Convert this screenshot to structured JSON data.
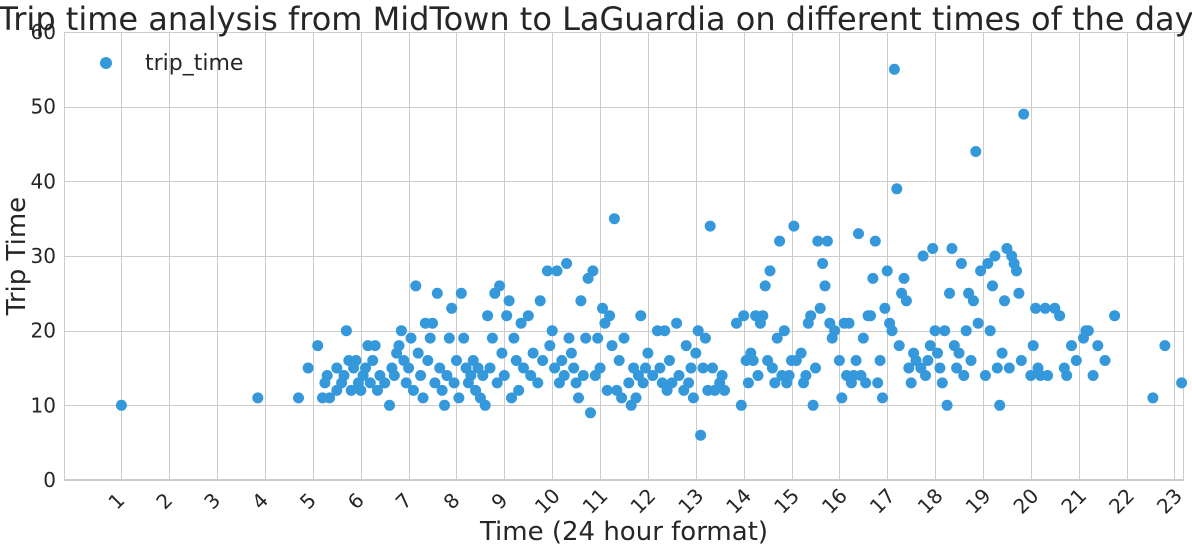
{
  "chart_data": {
    "type": "scatter",
    "title": "Trip time analysis from MidTown to LaGuardia on different times of the day",
    "xlabel": "Time (24 hour format)",
    "ylabel": "Trip Time",
    "xlim": [
      -0.2,
      23.2
    ],
    "ylim": [
      0,
      60
    ],
    "xticks": [
      1,
      2,
      3,
      4,
      5,
      6,
      7,
      8,
      9,
      10,
      11,
      12,
      13,
      14,
      15,
      16,
      17,
      18,
      19,
      20,
      21,
      22,
      23
    ],
    "yticks": [
      0,
      10,
      20,
      30,
      40,
      50,
      60
    ],
    "grid": true,
    "legend_position": "top-left",
    "series": [
      {
        "name": "trip_time",
        "color": "#3498db",
        "points": [
          [
            1.0,
            10
          ],
          [
            3.85,
            11
          ],
          [
            4.7,
            11
          ],
          [
            4.9,
            15
          ],
          [
            5.1,
            18
          ],
          [
            5.2,
            11
          ],
          [
            5.25,
            13
          ],
          [
            5.3,
            14
          ],
          [
            5.35,
            11
          ],
          [
            5.5,
            12
          ],
          [
            5.5,
            15
          ],
          [
            5.6,
            13
          ],
          [
            5.65,
            14
          ],
          [
            5.7,
            20
          ],
          [
            5.75,
            16
          ],
          [
            5.8,
            12
          ],
          [
            5.85,
            15
          ],
          [
            5.9,
            16
          ],
          [
            5.95,
            13
          ],
          [
            6.0,
            12
          ],
          [
            6.05,
            14
          ],
          [
            6.1,
            15
          ],
          [
            6.15,
            18
          ],
          [
            6.2,
            13
          ],
          [
            6.25,
            16
          ],
          [
            6.3,
            18
          ],
          [
            6.35,
            12
          ],
          [
            6.4,
            14
          ],
          [
            6.5,
            13
          ],
          [
            6.6,
            10
          ],
          [
            6.65,
            15
          ],
          [
            6.7,
            14
          ],
          [
            6.75,
            17
          ],
          [
            6.8,
            18
          ],
          [
            6.85,
            20
          ],
          [
            6.9,
            16
          ],
          [
            6.95,
            13
          ],
          [
            7.0,
            15
          ],
          [
            7.05,
            19
          ],
          [
            7.1,
            12
          ],
          [
            7.15,
            26
          ],
          [
            7.2,
            17
          ],
          [
            7.25,
            14
          ],
          [
            7.3,
            11
          ],
          [
            7.35,
            21
          ],
          [
            7.4,
            16
          ],
          [
            7.45,
            19
          ],
          [
            7.5,
            21
          ],
          [
            7.55,
            13
          ],
          [
            7.6,
            25
          ],
          [
            7.65,
            15
          ],
          [
            7.7,
            12
          ],
          [
            7.75,
            10
          ],
          [
            7.8,
            14
          ],
          [
            7.85,
            19
          ],
          [
            7.9,
            23
          ],
          [
            7.95,
            13
          ],
          [
            8.0,
            16
          ],
          [
            8.05,
            11
          ],
          [
            8.1,
            25
          ],
          [
            8.15,
            19
          ],
          [
            8.2,
            15
          ],
          [
            8.25,
            13
          ],
          [
            8.3,
            14
          ],
          [
            8.35,
            16
          ],
          [
            8.4,
            12
          ],
          [
            8.45,
            15
          ],
          [
            8.5,
            11
          ],
          [
            8.55,
            14
          ],
          [
            8.6,
            10
          ],
          [
            8.65,
            22
          ],
          [
            8.7,
            15
          ],
          [
            8.75,
            19
          ],
          [
            8.8,
            25
          ],
          [
            8.85,
            13
          ],
          [
            8.9,
            26
          ],
          [
            8.95,
            17
          ],
          [
            9.0,
            14
          ],
          [
            9.05,
            22
          ],
          [
            9.1,
            24
          ],
          [
            9.15,
            11
          ],
          [
            9.2,
            19
          ],
          [
            9.25,
            16
          ],
          [
            9.3,
            12
          ],
          [
            9.35,
            21
          ],
          [
            9.4,
            15
          ],
          [
            9.5,
            22
          ],
          [
            9.55,
            14
          ],
          [
            9.6,
            17
          ],
          [
            9.7,
            13
          ],
          [
            9.75,
            24
          ],
          [
            9.8,
            16
          ],
          [
            9.9,
            28
          ],
          [
            9.95,
            18
          ],
          [
            10.0,
            20
          ],
          [
            10.05,
            15
          ],
          [
            10.1,
            28
          ],
          [
            10.15,
            13
          ],
          [
            10.2,
            16
          ],
          [
            10.25,
            14
          ],
          [
            10.3,
            29
          ],
          [
            10.35,
            19
          ],
          [
            10.4,
            17
          ],
          [
            10.45,
            15
          ],
          [
            10.5,
            13
          ],
          [
            10.55,
            11
          ],
          [
            10.6,
            24
          ],
          [
            10.65,
            14
          ],
          [
            10.7,
            19
          ],
          [
            10.75,
            27
          ],
          [
            10.8,
            9
          ],
          [
            10.85,
            28
          ],
          [
            10.9,
            14
          ],
          [
            10.95,
            19
          ],
          [
            11.0,
            15
          ],
          [
            11.05,
            23
          ],
          [
            11.1,
            21
          ],
          [
            11.15,
            12
          ],
          [
            11.2,
            22
          ],
          [
            11.25,
            18
          ],
          [
            11.3,
            35
          ],
          [
            11.35,
            12
          ],
          [
            11.4,
            16
          ],
          [
            11.45,
            11
          ],
          [
            11.5,
            19
          ],
          [
            11.6,
            13
          ],
          [
            11.65,
            10
          ],
          [
            11.7,
            15
          ],
          [
            11.75,
            11
          ],
          [
            11.8,
            14
          ],
          [
            11.85,
            22
          ],
          [
            11.9,
            13
          ],
          [
            11.95,
            15
          ],
          [
            12.0,
            17
          ],
          [
            12.1,
            14
          ],
          [
            12.2,
            20
          ],
          [
            12.25,
            15
          ],
          [
            12.3,
            13
          ],
          [
            12.35,
            20
          ],
          [
            12.4,
            12
          ],
          [
            12.45,
            16
          ],
          [
            12.5,
            13
          ],
          [
            12.6,
            21
          ],
          [
            12.65,
            14
          ],
          [
            12.75,
            12
          ],
          [
            12.8,
            18
          ],
          [
            12.85,
            13
          ],
          [
            12.9,
            15
          ],
          [
            12.95,
            11
          ],
          [
            13.0,
            17
          ],
          [
            13.05,
            20
          ],
          [
            13.1,
            6
          ],
          [
            13.15,
            15
          ],
          [
            13.2,
            19
          ],
          [
            13.25,
            12
          ],
          [
            13.3,
            34
          ],
          [
            13.35,
            15
          ],
          [
            13.4,
            12
          ],
          [
            13.5,
            13
          ],
          [
            13.55,
            14
          ],
          [
            13.6,
            12
          ],
          [
            13.85,
            21
          ],
          [
            13.95,
            10
          ],
          [
            14.0,
            22
          ],
          [
            14.05,
            16
          ],
          [
            14.1,
            13
          ],
          [
            14.15,
            17
          ],
          [
            14.2,
            16
          ],
          [
            14.25,
            22
          ],
          [
            14.3,
            14
          ],
          [
            14.35,
            21
          ],
          [
            14.4,
            22
          ],
          [
            14.45,
            26
          ],
          [
            14.5,
            16
          ],
          [
            14.55,
            28
          ],
          [
            14.6,
            15
          ],
          [
            14.65,
            13
          ],
          [
            14.7,
            19
          ],
          [
            14.75,
            32
          ],
          [
            14.8,
            14
          ],
          [
            14.85,
            20
          ],
          [
            14.9,
            13
          ],
          [
            14.95,
            14
          ],
          [
            15.0,
            16
          ],
          [
            15.05,
            34
          ],
          [
            15.1,
            16
          ],
          [
            15.2,
            17
          ],
          [
            15.25,
            13
          ],
          [
            15.3,
            14
          ],
          [
            15.35,
            21
          ],
          [
            15.4,
            22
          ],
          [
            15.45,
            10
          ],
          [
            15.5,
            15
          ],
          [
            15.55,
            32
          ],
          [
            15.6,
            23
          ],
          [
            15.65,
            29
          ],
          [
            15.7,
            26
          ],
          [
            15.75,
            32
          ],
          [
            15.8,
            21
          ],
          [
            15.85,
            19
          ],
          [
            15.9,
            20
          ],
          [
            16.0,
            16
          ],
          [
            16.05,
            11
          ],
          [
            16.1,
            21
          ],
          [
            16.15,
            14
          ],
          [
            16.2,
            21
          ],
          [
            16.25,
            13
          ],
          [
            16.3,
            14
          ],
          [
            16.35,
            16
          ],
          [
            16.4,
            33
          ],
          [
            16.45,
            14
          ],
          [
            16.5,
            19
          ],
          [
            16.55,
            13
          ],
          [
            16.6,
            22
          ],
          [
            16.65,
            22
          ],
          [
            16.7,
            27
          ],
          [
            16.75,
            32
          ],
          [
            16.8,
            13
          ],
          [
            16.85,
            16
          ],
          [
            16.9,
            11
          ],
          [
            16.95,
            23
          ],
          [
            17.0,
            28
          ],
          [
            17.05,
            21
          ],
          [
            17.1,
            20
          ],
          [
            17.15,
            55
          ],
          [
            17.2,
            39
          ],
          [
            17.25,
            18
          ],
          [
            17.3,
            25
          ],
          [
            17.35,
            27
          ],
          [
            17.4,
            24
          ],
          [
            17.45,
            15
          ],
          [
            17.5,
            13
          ],
          [
            17.55,
            17
          ],
          [
            17.6,
            16
          ],
          [
            17.7,
            15
          ],
          [
            17.75,
            30
          ],
          [
            17.8,
            14
          ],
          [
            17.85,
            16
          ],
          [
            17.9,
            18
          ],
          [
            17.95,
            31
          ],
          [
            18.0,
            20
          ],
          [
            18.05,
            17
          ],
          [
            18.1,
            15
          ],
          [
            18.15,
            13
          ],
          [
            18.2,
            20
          ],
          [
            18.25,
            10
          ],
          [
            18.3,
            25
          ],
          [
            18.35,
            31
          ],
          [
            18.4,
            18
          ],
          [
            18.45,
            15
          ],
          [
            18.5,
            17
          ],
          [
            18.55,
            29
          ],
          [
            18.6,
            14
          ],
          [
            18.65,
            20
          ],
          [
            18.7,
            25
          ],
          [
            18.75,
            16
          ],
          [
            18.8,
            24
          ],
          [
            18.85,
            44
          ],
          [
            18.9,
            21
          ],
          [
            18.95,
            28
          ],
          [
            19.05,
            14
          ],
          [
            19.1,
            29
          ],
          [
            19.15,
            20
          ],
          [
            19.2,
            26
          ],
          [
            19.25,
            30
          ],
          [
            19.3,
            15
          ],
          [
            19.35,
            10
          ],
          [
            19.4,
            17
          ],
          [
            19.45,
            24
          ],
          [
            19.5,
            31
          ],
          [
            19.55,
            15
          ],
          [
            19.6,
            30
          ],
          [
            19.65,
            29
          ],
          [
            19.7,
            28
          ],
          [
            19.75,
            25
          ],
          [
            19.8,
            16
          ],
          [
            19.85,
            49
          ],
          [
            20.0,
            14
          ],
          [
            20.05,
            18
          ],
          [
            20.1,
            23
          ],
          [
            20.15,
            15
          ],
          [
            20.2,
            14
          ],
          [
            20.3,
            23
          ],
          [
            20.35,
            14
          ],
          [
            20.5,
            23
          ],
          [
            20.6,
            22
          ],
          [
            20.7,
            15
          ],
          [
            20.75,
            14
          ],
          [
            20.85,
            18
          ],
          [
            20.95,
            16
          ],
          [
            21.1,
            19
          ],
          [
            21.15,
            20
          ],
          [
            21.2,
            20
          ],
          [
            21.3,
            14
          ],
          [
            21.4,
            18
          ],
          [
            21.55,
            16
          ],
          [
            21.75,
            22
          ],
          [
            22.55,
            11
          ],
          [
            22.8,
            18
          ],
          [
            23.15,
            13
          ]
        ]
      }
    ]
  }
}
